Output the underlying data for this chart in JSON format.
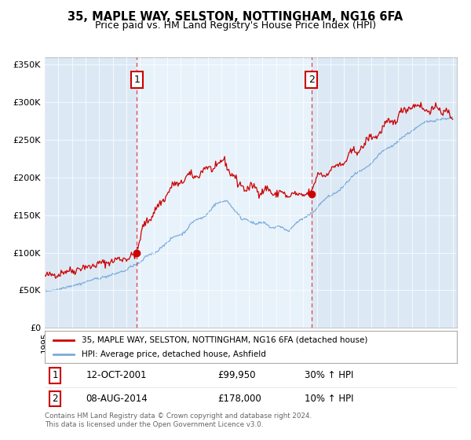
{
  "title": "35, MAPLE WAY, SELSTON, NOTTINGHAM, NG16 6FA",
  "subtitle": "Price paid vs. HM Land Registry's House Price Index (HPI)",
  "background_color": "#ffffff",
  "plot_bg_color": "#dce9f5",
  "shade_color": "#e8f2fb",
  "x_start_year": 1995,
  "x_end_year": 2025,
  "y_min": 0,
  "y_max": 360000,
  "y_ticks": [
    0,
    50000,
    100000,
    150000,
    200000,
    250000,
    300000,
    350000
  ],
  "y_tick_labels": [
    "£0",
    "£50K",
    "£100K",
    "£150K",
    "£200K",
    "£250K",
    "£300K",
    "£350K"
  ],
  "sale1_date": "12-OCT-2001",
  "sale1_price": 99950,
  "sale1_x": 2001.78,
  "sale1_label": "1",
  "sale2_date": "08-AUG-2014",
  "sale2_price": 178000,
  "sale2_x": 2014.6,
  "sale2_label": "2",
  "line1_color": "#cc0000",
  "line2_color": "#7aabdb",
  "dot_color": "#cc0000",
  "dashed_line_color": "#dd4444",
  "legend1_label": "35, MAPLE WAY, SELSTON, NOTTINGHAM, NG16 6FA (detached house)",
  "legend2_label": "HPI: Average price, detached house, Ashfield",
  "sale1_hpi_label": "30% ↑ HPI",
  "sale2_hpi_label": "10% ↑ HPI",
  "footer_text": "Contains HM Land Registry data © Crown copyright and database right 2024.\nThis data is licensed under the Open Government Licence v3.0.",
  "label_box_edge_color": "#cc0000",
  "grid_color": "#ffffff",
  "title_fontsize": 10.5,
  "subtitle_fontsize": 9
}
